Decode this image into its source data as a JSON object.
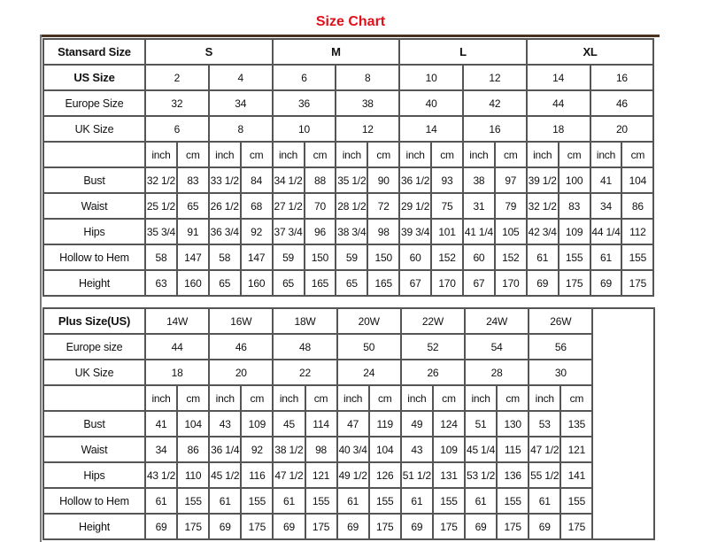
{
  "title": "Size Chart",
  "colors": {
    "title": "#e0101a",
    "border": "#555555",
    "top_bar": "#4a3220"
  },
  "standard": {
    "header_label": "Stansard Size",
    "groups": [
      "S",
      "M",
      "L",
      "XL"
    ],
    "us_label": "US Size",
    "us": [
      "2",
      "4",
      "6",
      "8",
      "10",
      "12",
      "14",
      "16"
    ],
    "europe_label": "Europe Size",
    "europe": [
      "32",
      "34",
      "36",
      "38",
      "40",
      "42",
      "44",
      "46"
    ],
    "uk_label": "UK Size",
    "uk": [
      "6",
      "8",
      "10",
      "12",
      "14",
      "16",
      "18",
      "20"
    ],
    "unit_inch": "inch",
    "unit_cm": "cm",
    "measurements": [
      {
        "label": "Bust",
        "values": [
          "32 1/2",
          "83",
          "33 1/2",
          "84",
          "34 1/2",
          "88",
          "35 1/2",
          "90",
          "36 1/2",
          "93",
          "38",
          "97",
          "39 1/2",
          "100",
          "41",
          "104"
        ]
      },
      {
        "label": "Waist",
        "values": [
          "25 1/2",
          "65",
          "26 1/2",
          "68",
          "27 1/2",
          "70",
          "28 1/2",
          "72",
          "29 1/2",
          "75",
          "31",
          "79",
          "32 1/2",
          "83",
          "34",
          "86"
        ]
      },
      {
        "label": "Hips",
        "values": [
          "35 3/4",
          "91",
          "36 3/4",
          "92",
          "37 3/4",
          "96",
          "38 3/4",
          "98",
          "39 3/4",
          "101",
          "41 1/4",
          "105",
          "42 3/4",
          "109",
          "44 1/4",
          "112"
        ]
      },
      {
        "label": "Hollow to Hem",
        "values": [
          "58",
          "147",
          "58",
          "147",
          "59",
          "150",
          "59",
          "150",
          "60",
          "152",
          "60",
          "152",
          "61",
          "155",
          "61",
          "155"
        ]
      },
      {
        "label": "Height",
        "values": [
          "63",
          "160",
          "65",
          "160",
          "65",
          "165",
          "65",
          "165",
          "67",
          "170",
          "67",
          "170",
          "69",
          "175",
          "69",
          "175"
        ]
      }
    ]
  },
  "plus": {
    "header_label": "Plus Size(US)",
    "sizes": [
      "14W",
      "16W",
      "18W",
      "20W",
      "22W",
      "24W",
      "26W"
    ],
    "europe_label": "Europe size",
    "europe": [
      "44",
      "46",
      "48",
      "50",
      "52",
      "54",
      "56"
    ],
    "uk_label": "UK Size",
    "uk": [
      "18",
      "20",
      "22",
      "24",
      "26",
      "28",
      "30"
    ],
    "unit_inch": "inch",
    "unit_cm": "cm",
    "measurements": [
      {
        "label": "Bust",
        "values": [
          "41",
          "104",
          "43",
          "109",
          "45",
          "114",
          "47",
          "119",
          "49",
          "124",
          "51",
          "130",
          "53",
          "135"
        ]
      },
      {
        "label": "Waist",
        "values": [
          "34",
          "86",
          "36 1/4",
          "92",
          "38 1/2",
          "98",
          "40 3/4",
          "104",
          "43",
          "109",
          "45 1/4",
          "115",
          "47 1/2",
          "121"
        ]
      },
      {
        "label": "Hips",
        "values": [
          "43 1/2",
          "110",
          "45 1/2",
          "116",
          "47 1/2",
          "121",
          "49 1/2",
          "126",
          "51 1/2",
          "131",
          "53 1/2",
          "136",
          "55 1/2",
          "141"
        ]
      },
      {
        "label": "Hollow to Hem",
        "values": [
          "61",
          "155",
          "61",
          "155",
          "61",
          "155",
          "61",
          "155",
          "61",
          "155",
          "61",
          "155",
          "61",
          "155"
        ]
      },
      {
        "label": "Height",
        "values": [
          "69",
          "175",
          "69",
          "175",
          "69",
          "175",
          "69",
          "175",
          "69",
          "175",
          "69",
          "175",
          "69",
          "175"
        ]
      }
    ]
  }
}
